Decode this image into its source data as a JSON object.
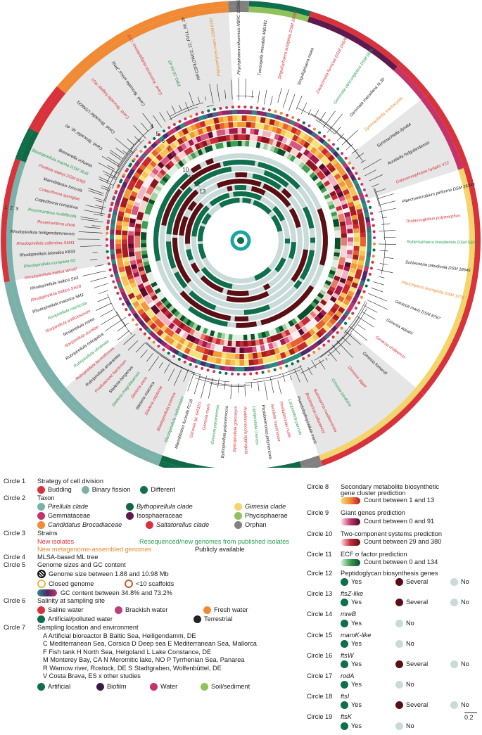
{
  "colors": {
    "budding": "#d8333c",
    "binary_fission": "#7fb0a8",
    "different": "#0f6e4b",
    "pirellula": "#79b1ab",
    "bythopirellula": "#0d6a45",
    "gimesia": "#f3d56c",
    "gemmataceae": "#c4336a",
    "isosphaeraceae": "#5d1a4d",
    "phycisphaerae": "#8fc25b",
    "brocadiaceae": "#f08a34",
    "saltatorellus": "#d8333c",
    "orphan": "#808080",
    "saline": "#d8333c",
    "brackish": "#b9427a",
    "fresh": "#f08a34",
    "artificial_water": "#0f6e4b",
    "terrestrial": "#222222",
    "env_artificial": "#0f6e4b",
    "env_biofilm": "#3b1a45",
    "env_water": "#c4336a",
    "env_soil": "#8fc25b",
    "yes_dark": "#0f6e4b",
    "several": "#5a0f14",
    "no": "#c9dbd8",
    "heat_low": "#f4e27a",
    "heat_high": "#c0142a"
  },
  "tree_labels": {
    "circle_numbers": [
      "4",
      "5",
      "6",
      "7",
      "8",
      "9",
      "10",
      "11",
      "12",
      "13"
    ],
    "edge_numbers": [
      "1",
      "2",
      "3"
    ],
    "taxa_right": [
      "Cand. 'Brocadia' sp. 40",
      "Cand. 'Brocadia' UTAMX1",
      "Cand. 'Brocadia fulgida' RU1",
      "Cand. 'Brocadia sinica' JPN1",
      "Cand. 'Kuenenia stuttgartiensis' CH1",
      "RBG-16-64-43",
      "RIFCSPLOWO2_12_FULL_56_16",
      "Planctomyces maris DSM 8797",
      "Phycisphaera mikurensis NBRC 102666",
      "Tuwongella immobilis MBLW1",
      "Singulisphaera acidiphila DSM 18658",
      "Singulisphaera rosea",
      "Zavarzinella formosa DSM 19928",
      "Gemmata obscuriglobus DSM 5831",
      "Gemmata massiliana IIL30",
      "Symmachiella macrocystis",
      "Symmachiella dynata",
      "Aureliella helgolandensis",
      "Calycomorphotria hydatis V22",
      "Planctomicrobium piriforme DSM 26348",
      "Thalassoglobus polymorphus",
      "Rubinisphaera brasiliensis DSM 5305",
      "Schlesneria paludicola DSM 18645",
      "Planctopirus limnophila DSM 3776",
      "Gimesia maris DSM 8797",
      "Gimesia aquarii",
      "Gimesia chilikensis",
      "Gimesia fumaroli",
      "Gimesia algae",
      "Gimesia benthica"
    ],
    "taxa_left": [
      "Stieleria neptunia",
      "Stieleria maiorica",
      "Stieleria varia",
      "Stieleria magnilauensis",
      "Stieleria bergensis",
      "Pirellulaceae bacterium",
      "Rubripirellula amarantea",
      "Rubripirellula lacrimiformis",
      "Rubripirellula obstinata",
      "Rubripirellula reticaptiva",
      "Novipirellula aureliae",
      "Novipirellula rosea",
      "Novipirellula artificiosorum",
      "Novipirellula caenicola",
      "Rhodopirellula maiorica SM1",
      "Rhodopirellula baltica SH28",
      "Rhodopirellula baltica SH1",
      "Rhodopirellula baltica WH47",
      "Rhodopirellula europaea 6C",
      "Rhodopirellula islandica K833",
      "Rhodopirellula sallentina SM41",
      "Rhodopirellula heiligendammensis",
      "Roseimaritima ulvae",
      "Roseimaritima multifibrata",
      "Crateriforma conspicua",
      "Crateriforma spongiae",
      "Mariniblastus fucicola",
      "Pirellula staleyi DSM 6068",
      "Blastopirellula marina DSM 3645",
      "Bremerella volcania"
    ],
    "taxa_bottom": [
      "Botrimarina mediterranea",
      "Botrimarina colliarenosi",
      "Pseudobythopirellula maris",
      "Lacipirellula parvula",
      "Pirellulimonas nuda",
      "Aeoliella mucimassa",
      "Posidoniimonas polymericola",
      "Lignipirellula cremea",
      "Anatilimnocola aggregata",
      "Bythopirellula goksoeyrii",
      "Bythopirellula polymerisocia",
      "Gimesia panareensis",
      "Gimesia maris",
      "Gimesia sp. GR11G",
      "Mariniblastus fucicola FC18",
      "Blastopirellula retiformator",
      "Blastopirellula cremea"
    ]
  },
  "legend": {
    "c1": {
      "id": "Circle 1",
      "title": "Strategy of cell division",
      "items": [
        "Budding",
        "Binary fission",
        "Different"
      ]
    },
    "c2": {
      "id": "Circle 2",
      "title": "Taxon",
      "items": [
        "Pirellula clade",
        "Bythopirellula clade",
        "Gimesia clade",
        "Gemmataceae",
        "Isosphaeraceae",
        "Phycisphaerae",
        "Candidatus Brocadiaceae",
        "Saltatorellus clade",
        "Orphan"
      ]
    },
    "c3": {
      "id": "Circle 3",
      "title": "Strains",
      "items": [
        "New isolates",
        "Resequenced/new genomes from published isolates",
        "New metagenome-assembled genomes",
        "Publicly available"
      ]
    },
    "c4": {
      "id": "Circle 4",
      "title": "MLSA-based ML tree"
    },
    "c5": {
      "id": "Circle 5",
      "title": "Genome sizes and GC content",
      "items": [
        "Genome size between 1.88 and 10.98 Mb",
        "Closed genome",
        "<10 scaffolds",
        "GC content between 34.8% and 73.2%"
      ]
    },
    "c6": {
      "id": "Circle 6",
      "title": "Salinity at sampling site",
      "items": [
        "Saline water",
        "Brackish water",
        "Fresh water",
        "Artificial/polluted water",
        "Terrestrial"
      ]
    },
    "c7": {
      "id": "Circle 7",
      "title": "Sampling location and environment",
      "locations": [
        "A  Artificial bioreactor     B Baltic Sea, Heiligendamm, DE",
        "C  Mediterranean Sea, Corsica     D Deep sea     E Mediterranean Sea, Mallorca",
        "F  Fish tank     H North Sea, Helgoland     L Lake Constance, DE",
        "M Monterey Bay, CA     N Meromitic lake, NO     P  Tyrrhenian Sea, Panarea",
        "R  Warnow river, Rostock, DE     S  Stadtgraben, Wolfenbüttel, DE",
        "V  Costa Brava, ES     x  other studies"
      ],
      "items": [
        "Artificial",
        "Biofilm",
        "Water",
        "Soil/sediment"
      ]
    },
    "c8": {
      "id": "Circle 8",
      "title": "Secondary metabolite biosynthetic",
      "title2": "gene cluster prediction",
      "range": "Count between 1 and 13"
    },
    "c9": {
      "id": "Circle 9",
      "title": "Giant genes prediction",
      "range": "Count between 0 and 91"
    },
    "c10": {
      "id": "Circle 10",
      "title": "Two-component systems prediction",
      "range": "Count between 29 and 380"
    },
    "c11": {
      "id": "Circle 11",
      "title": "ECF σ factor prediction",
      "range": "Count between 0 and 134"
    },
    "c12": {
      "id": "Circle 12",
      "title": "Peptidoglycan biosynthesis genes",
      "items": [
        "Yes",
        "Several",
        "No"
      ]
    },
    "c13": {
      "id": "Circle 13",
      "title": "ftsZ-like",
      "items": [
        "Yes",
        "Several",
        "No"
      ]
    },
    "c14": {
      "id": "Circle 14",
      "title": "mreB",
      "items": [
        "Yes",
        "No"
      ]
    },
    "c15": {
      "id": "Circle 15",
      "title": "mamK-like",
      "items": [
        "Yes",
        "No"
      ]
    },
    "c16": {
      "id": "Circle 16",
      "title": "ftsW",
      "items": [
        "Yes",
        "Several",
        "No"
      ]
    },
    "c17": {
      "id": "Circle 17",
      "title": "rodA",
      "items": [
        "Yes",
        "No"
      ]
    },
    "c18": {
      "id": "Circle 18",
      "title": "ftsI",
      "items": [
        "Yes",
        "Several",
        "No"
      ]
    },
    "c19": {
      "id": "Circle 19",
      "title": "ftsK",
      "items": [
        "Yes",
        "No"
      ]
    }
  },
  "scale_bar": "0.2"
}
